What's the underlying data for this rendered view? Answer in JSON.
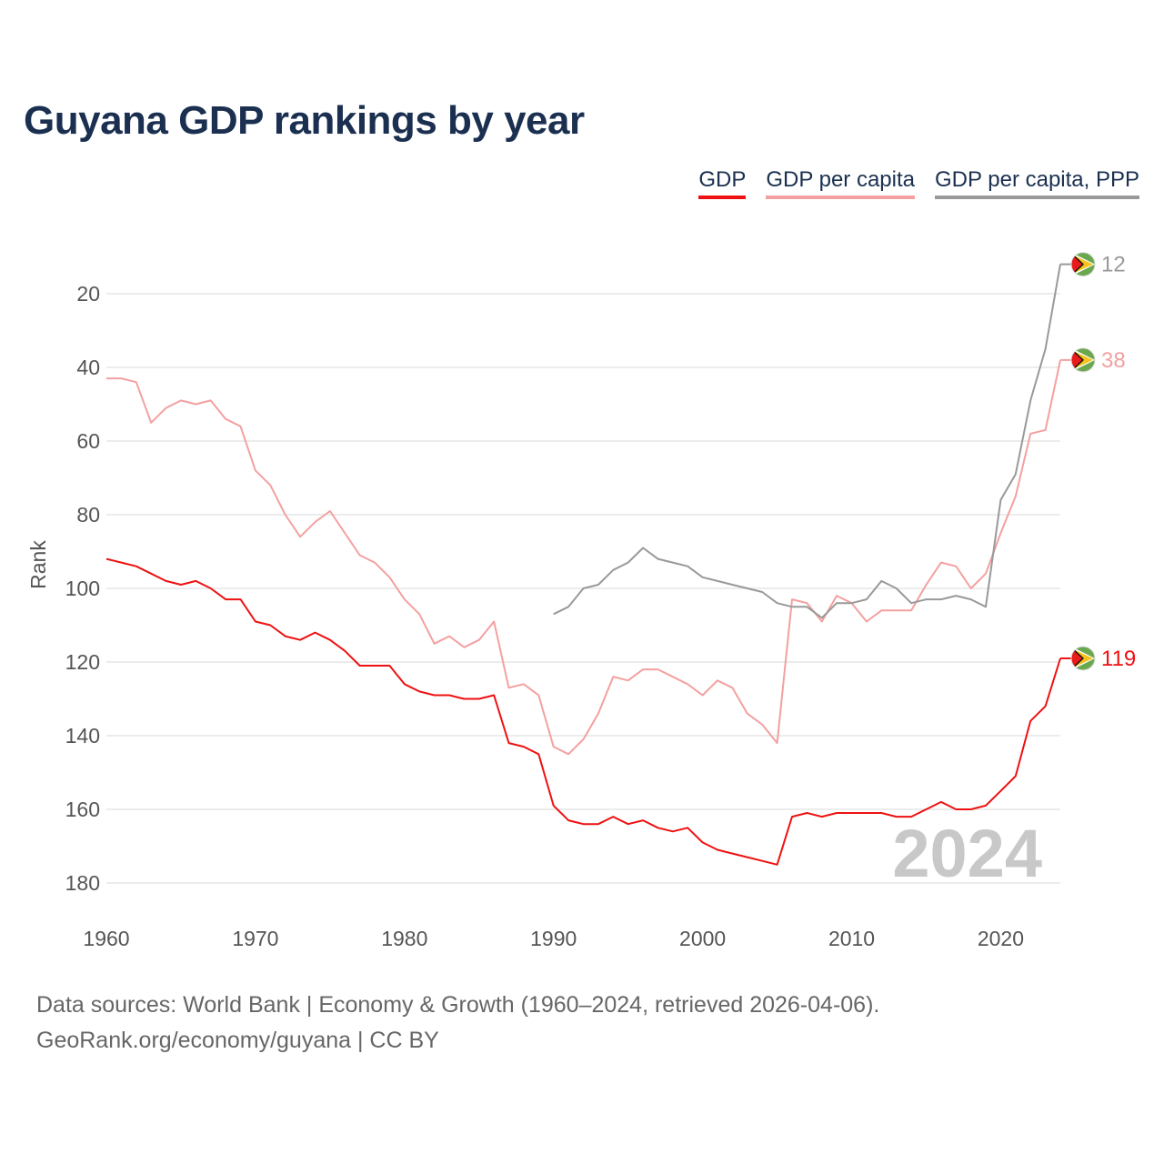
{
  "title": "Guyana GDP rankings by year",
  "legend": [
    {
      "label": "GDP",
      "color": "#ee1111"
    },
    {
      "label": "GDP per capita",
      "color": "#f4a0a0"
    },
    {
      "label": "GDP per capita, PPP",
      "color": "#999999"
    }
  ],
  "footer": {
    "line1": "Data sources: World Bank | Economy & Growth (1960–2024, retrieved 2026-04-06).",
    "line2": "GeoRank.org/economy/guyana | CC BY"
  },
  "chart_data": {
    "type": "line",
    "title": "Guyana GDP rankings by year",
    "xlabel": "",
    "ylabel": "Rank",
    "xlim": [
      1960,
      2024
    ],
    "ylim": [
      188,
      10
    ],
    "y_reversed": true,
    "x_ticks": [
      1960,
      1970,
      1980,
      1990,
      2000,
      2010,
      2020
    ],
    "y_ticks": [
      20,
      40,
      60,
      80,
      100,
      120,
      140,
      160,
      180
    ],
    "grid": true,
    "watermark_year": "2024",
    "series": [
      {
        "name": "GDP",
        "color": "#ee1111",
        "end_label": "119",
        "x": [
          1960,
          1961,
          1962,
          1963,
          1964,
          1965,
          1966,
          1967,
          1968,
          1969,
          1970,
          1971,
          1972,
          1973,
          1974,
          1975,
          1976,
          1977,
          1978,
          1979,
          1980,
          1981,
          1982,
          1983,
          1984,
          1985,
          1986,
          1987,
          1988,
          1989,
          1990,
          1991,
          1992,
          1993,
          1994,
          1995,
          1996,
          1997,
          1998,
          1999,
          2000,
          2001,
          2002,
          2003,
          2004,
          2005,
          2006,
          2007,
          2008,
          2009,
          2010,
          2011,
          2012,
          2013,
          2014,
          2015,
          2016,
          2017,
          2018,
          2019,
          2020,
          2021,
          2022,
          2023,
          2024
        ],
        "values": [
          92,
          93,
          94,
          96,
          98,
          99,
          98,
          100,
          103,
          103,
          109,
          110,
          113,
          114,
          112,
          114,
          117,
          121,
          121,
          121,
          126,
          128,
          129,
          129,
          130,
          130,
          129,
          142,
          143,
          145,
          159,
          163,
          164,
          164,
          162,
          164,
          163,
          165,
          166,
          165,
          169,
          171,
          172,
          173,
          174,
          175,
          162,
          161,
          162,
          161,
          161,
          161,
          161,
          162,
          162,
          160,
          158,
          160,
          160,
          159,
          155,
          151,
          136,
          132,
          119
        ]
      },
      {
        "name": "GDP per capita",
        "color": "#f4a0a0",
        "end_label": "38",
        "x": [
          1960,
          1961,
          1962,
          1963,
          1964,
          1965,
          1966,
          1967,
          1968,
          1969,
          1970,
          1971,
          1972,
          1973,
          1974,
          1975,
          1976,
          1977,
          1978,
          1979,
          1980,
          1981,
          1982,
          1983,
          1984,
          1985,
          1986,
          1987,
          1988,
          1989,
          1990,
          1991,
          1992,
          1993,
          1994,
          1995,
          1996,
          1997,
          1998,
          1999,
          2000,
          2001,
          2002,
          2003,
          2004,
          2005,
          2006,
          2007,
          2008,
          2009,
          2010,
          2011,
          2012,
          2013,
          2014,
          2015,
          2016,
          2017,
          2018,
          2019,
          2020,
          2021,
          2022,
          2023,
          2024
        ],
        "values": [
          43,
          43,
          44,
          55,
          51,
          49,
          50,
          49,
          54,
          56,
          68,
          72,
          80,
          86,
          82,
          79,
          85,
          91,
          93,
          97,
          103,
          107,
          115,
          113,
          116,
          114,
          109,
          127,
          126,
          129,
          143,
          145,
          141,
          134,
          124,
          125,
          122,
          122,
          124,
          126,
          129,
          125,
          127,
          134,
          137,
          142,
          103,
          104,
          109,
          102,
          104,
          109,
          106,
          106,
          106,
          99,
          93,
          94,
          100,
          96,
          85,
          75,
          58,
          57,
          38
        ]
      },
      {
        "name": "GDP per capita, PPP",
        "color": "#999999",
        "end_label": "12",
        "x": [
          1990,
          1991,
          1992,
          1993,
          1994,
          1995,
          1996,
          1997,
          1998,
          1999,
          2000,
          2001,
          2002,
          2003,
          2004,
          2005,
          2006,
          2007,
          2008,
          2009,
          2010,
          2011,
          2012,
          2013,
          2014,
          2015,
          2016,
          2017,
          2018,
          2019,
          2020,
          2021,
          2022,
          2023,
          2024
        ],
        "values": [
          107,
          105,
          100,
          99,
          95,
          93,
          89,
          92,
          93,
          94,
          97,
          98,
          99,
          100,
          101,
          104,
          105,
          105,
          108,
          104,
          104,
          103,
          98,
          100,
          104,
          103,
          103,
          102,
          103,
          105,
          76,
          69,
          49,
          35,
          12
        ]
      }
    ]
  }
}
